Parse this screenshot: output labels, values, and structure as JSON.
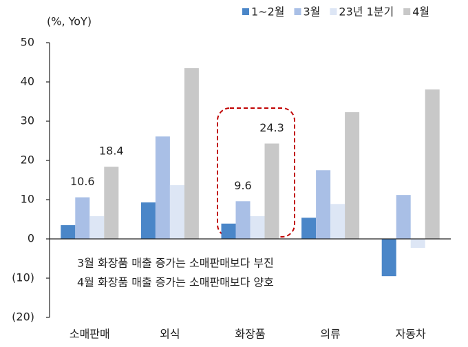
{
  "chart_data": {
    "type": "bar",
    "unit_label": "(%, YoY)",
    "categories": [
      "소매판매",
      "외식",
      "화장품",
      "의류",
      "자동차"
    ],
    "series": [
      {
        "name": "1~2월",
        "color": "#4a86c8",
        "values": [
          3.5,
          9.3,
          3.9,
          5.4,
          -9.5
        ]
      },
      {
        "name": "3월",
        "color": "#a9bfe6",
        "values": [
          10.6,
          26.1,
          9.6,
          17.5,
          11.2
        ],
        "value_labels": [
          "10.6",
          null,
          "9.6",
          null,
          null
        ]
      },
      {
        "name": "23년 1분기",
        "color": "#dde6f5",
        "values": [
          5.8,
          13.7,
          5.8,
          8.9,
          -2.3
        ]
      },
      {
        "name": "4월",
        "color": "#c8c8c8",
        "values": [
          18.4,
          43.5,
          24.3,
          32.3,
          38.1
        ],
        "value_labels": [
          "18.4",
          null,
          "24.3",
          null,
          null
        ]
      }
    ],
    "ylim": [
      -20,
      50
    ],
    "yticks": [
      {
        "value": -20,
        "label": "(20)"
      },
      {
        "value": -10,
        "label": "(10)"
      },
      0,
      10,
      20,
      30,
      40,
      50
    ],
    "annotations": [
      "3월  화장품  매출  증가는  소매판매보다  부진",
      "4월  화장품  매출  증가는  소매판매보다  양호"
    ]
  }
}
